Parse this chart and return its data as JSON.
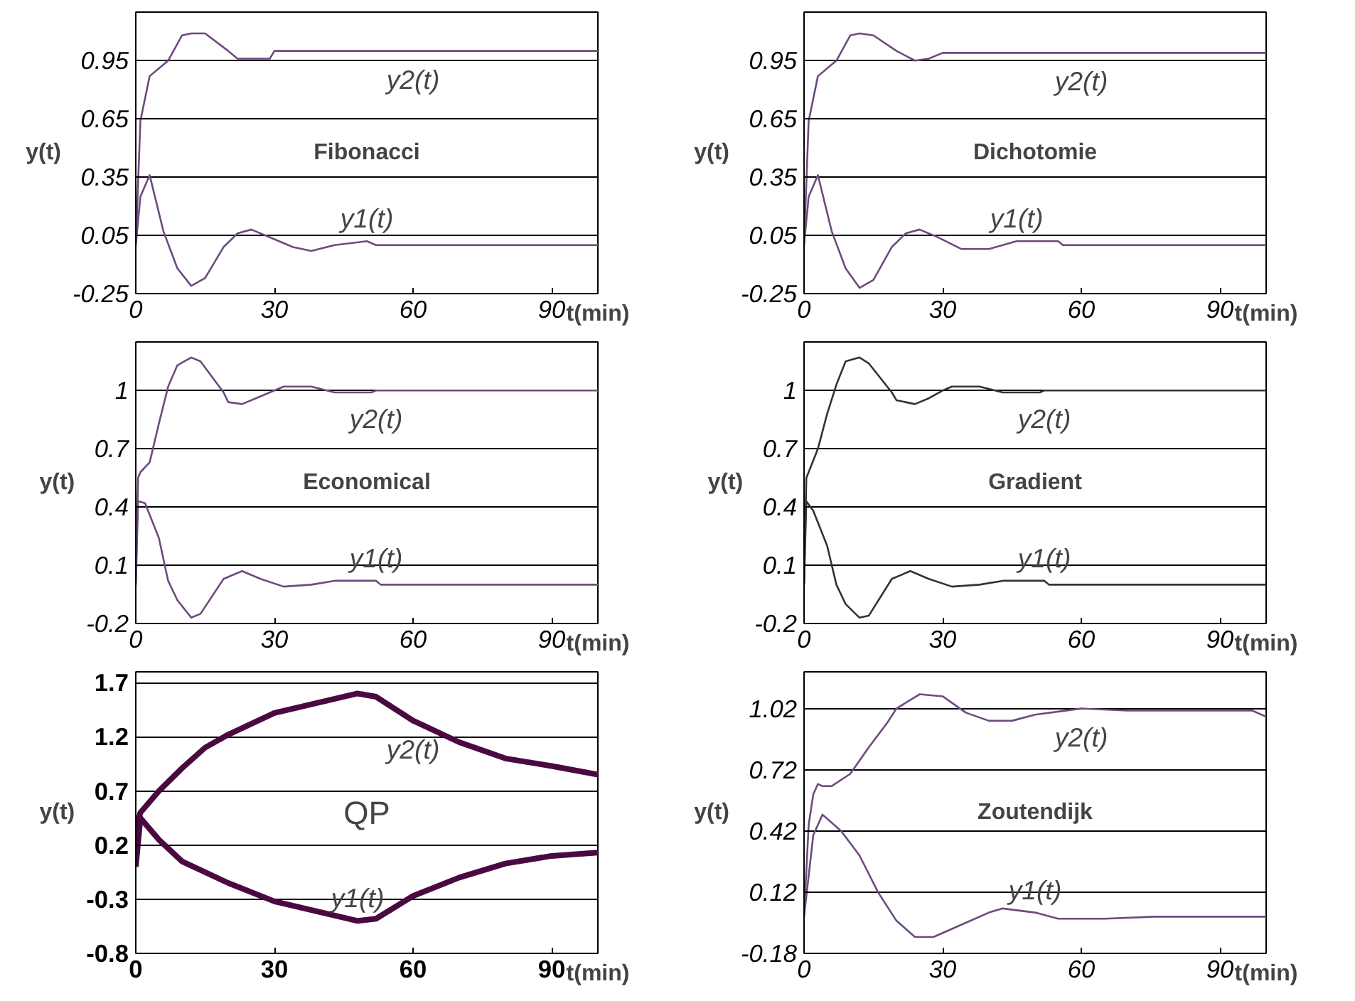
{
  "chart_data": [
    {
      "type": "line",
      "title": "Fibonacci",
      "xlabel": "t(min)",
      "ylabel": "y(t)",
      "xlim": [
        0,
        100
      ],
      "xticks": [
        0,
        30,
        60,
        90
      ],
      "ylim": [
        -0.25,
        1.2
      ],
      "yticks": [
        -0.25,
        0.05,
        0.35,
        0.65,
        0.95
      ],
      "grid": "y",
      "series": [
        {
          "name": "y2(t)",
          "color": "#6e4a7e",
          "x": [
            0,
            1,
            3,
            7,
            10,
            12,
            15,
            20,
            22,
            29,
            30,
            40,
            60,
            80,
            100
          ],
          "values": [
            0,
            0.64,
            0.87,
            0.95,
            1.08,
            1.09,
            1.09,
            1.0,
            0.96,
            0.96,
            1.0,
            1.0,
            1.0,
            1.0,
            1.0
          ]
        },
        {
          "name": "y1(t)",
          "color": "#6e4a7e",
          "x": [
            0,
            1,
            3,
            6,
            9,
            12,
            15,
            19,
            22,
            25,
            29,
            34,
            38,
            43,
            50,
            52,
            100
          ],
          "values": [
            0,
            0.25,
            0.36,
            0.07,
            -0.12,
            -0.21,
            -0.17,
            -0.01,
            0.06,
            0.08,
            0.04,
            -0.01,
            -0.03,
            0.0,
            0.02,
            0.0,
            0.0
          ]
        }
      ]
    },
    {
      "type": "line",
      "title": "Dichotomie",
      "xlabel": "t(min)",
      "ylabel": "y(t)",
      "xlim": [
        0,
        100
      ],
      "xticks": [
        0,
        30,
        60,
        90
      ],
      "ylim": [
        -0.25,
        1.2
      ],
      "yticks": [
        -0.25,
        0.05,
        0.35,
        0.65,
        0.95
      ],
      "grid": "y",
      "series": [
        {
          "name": "y2(t)",
          "color": "#6e4a7e",
          "x": [
            0,
            1,
            3,
            7,
            10,
            12,
            15,
            20,
            24,
            27,
            30,
            40,
            60,
            80,
            100
          ],
          "values": [
            0,
            0.64,
            0.87,
            0.95,
            1.08,
            1.09,
            1.08,
            1.0,
            0.95,
            0.96,
            0.99,
            0.99,
            0.99,
            0.99,
            0.99
          ]
        },
        {
          "name": "y1(t)",
          "color": "#6e4a7e",
          "x": [
            0,
            1,
            3,
            6,
            9,
            12,
            15,
            19,
            22,
            25,
            29,
            34,
            40,
            46,
            55,
            56,
            100
          ],
          "values": [
            0,
            0.25,
            0.36,
            0.07,
            -0.12,
            -0.22,
            -0.18,
            -0.01,
            0.06,
            0.08,
            0.04,
            -0.02,
            -0.02,
            0.02,
            0.02,
            0.0,
            0.0
          ]
        }
      ]
    },
    {
      "type": "line",
      "title": "Economical",
      "xlabel": "t(min)",
      "ylabel": "y(t)",
      "xlim": [
        0,
        100
      ],
      "xticks": [
        0,
        30,
        60,
        90
      ],
      "ylim": [
        -0.2,
        1.25
      ],
      "yticks": [
        -0.2,
        0.1,
        0.4,
        0.7,
        1
      ],
      "grid": "y",
      "series": [
        {
          "name": "y2(t)",
          "color": "#6e4a7e",
          "x": [
            0,
            0.5,
            1,
            3,
            5,
            7,
            9,
            12,
            14,
            19,
            20,
            23,
            27,
            30,
            32,
            38,
            43,
            51,
            52,
            100
          ],
          "values": [
            0,
            0.55,
            0.58,
            0.63,
            0.83,
            1.02,
            1.13,
            1.17,
            1.15,
            0.99,
            0.94,
            0.93,
            0.97,
            1.0,
            1.02,
            1.02,
            0.99,
            0.99,
            1.0,
            1.0
          ]
        },
        {
          "name": "y1(t)",
          "color": "#6e4a7e",
          "x": [
            0,
            0.5,
            2,
            5,
            7,
            9,
            12,
            14,
            19,
            23,
            27,
            32,
            38,
            43,
            52,
            53,
            100
          ],
          "values": [
            0,
            0.43,
            0.42,
            0.24,
            0.02,
            -0.08,
            -0.17,
            -0.15,
            0.03,
            0.07,
            0.03,
            -0.01,
            0.0,
            0.02,
            0.02,
            0.0,
            0.0
          ]
        }
      ]
    },
    {
      "type": "line",
      "title": "Gradient",
      "xlabel": "t(min)",
      "ylabel": "y(t)",
      "xlim": [
        0,
        100
      ],
      "xticks": [
        0,
        30,
        60,
        90
      ],
      "ylim": [
        -0.2,
        1.25
      ],
      "yticks": [
        -0.2,
        0.1,
        0.4,
        0.7,
        1
      ],
      "grid": "y",
      "series": [
        {
          "name": "y2(t)",
          "color": "#333333",
          "x": [
            0,
            0.5,
            1,
            3,
            5,
            7,
            9,
            12,
            14,
            19,
            20,
            24,
            27,
            30,
            32,
            38,
            43,
            51,
            52,
            100
          ],
          "values": [
            0,
            0.55,
            0.58,
            0.7,
            0.88,
            1.03,
            1.15,
            1.17,
            1.14,
            0.99,
            0.95,
            0.93,
            0.96,
            1.0,
            1.02,
            1.02,
            0.99,
            0.99,
            1.0,
            1.0
          ]
        },
        {
          "name": "y1(t)",
          "color": "#333333",
          "x": [
            0,
            0.5,
            2,
            5,
            7,
            9,
            12,
            14,
            19,
            23,
            27,
            32,
            38,
            43,
            52,
            53,
            100
          ],
          "values": [
            0,
            0.43,
            0.38,
            0.2,
            0.0,
            -0.1,
            -0.17,
            -0.16,
            0.03,
            0.07,
            0.03,
            -0.01,
            0.0,
            0.02,
            0.02,
            0.0,
            0.0
          ]
        }
      ]
    },
    {
      "type": "line",
      "title": "QP",
      "xlabel": "t(min)",
      "ylabel": "y(t)",
      "xlim": [
        0,
        100
      ],
      "xticks": [
        0,
        30,
        60,
        90
      ],
      "ylim": [
        -0.8,
        1.8
      ],
      "yticks": [
        -0.8,
        -0.3,
        0.2,
        0.7,
        1.2,
        1.7
      ],
      "grid": "y",
      "series": [
        {
          "name": "y2(t)",
          "color": "#4a0a40",
          "x": [
            0,
            1,
            5,
            10,
            15,
            20,
            30,
            40,
            48,
            52,
            60,
            70,
            80,
            90,
            100
          ],
          "values": [
            0.35,
            0.5,
            0.7,
            0.91,
            1.1,
            1.22,
            1.42,
            1.52,
            1.6,
            1.57,
            1.35,
            1.15,
            1.0,
            0.93,
            0.85
          ]
        },
        {
          "name": "y1(t)",
          "color": "#4a0a40",
          "x": [
            0,
            1,
            5,
            10,
            20,
            30,
            40,
            48,
            52,
            60,
            70,
            80,
            90,
            100
          ],
          "values": [
            0.0,
            0.45,
            0.25,
            0.05,
            -0.15,
            -0.32,
            -0.42,
            -0.5,
            -0.48,
            -0.27,
            -0.1,
            0.03,
            0.1,
            0.13
          ]
        }
      ]
    },
    {
      "type": "line",
      "title": "Zoutendijk",
      "xlabel": "t(min)",
      "ylabel": "y(t)",
      "xlim": [
        0,
        100
      ],
      "xticks": [
        0,
        30,
        60,
        90
      ],
      "ylim": [
        -0.18,
        1.2
      ],
      "yticks": [
        -0.18,
        0.12,
        0.42,
        0.72,
        1.02
      ],
      "grid": "y",
      "series": [
        {
          "name": "y2(t)",
          "color": "#6e4a7e",
          "x": [
            0,
            1,
            2,
            3,
            4,
            6,
            10,
            14,
            18,
            20,
            25,
            30,
            35,
            40,
            45,
            50,
            60,
            70,
            97,
            100
          ],
          "values": [
            0.0,
            0.45,
            0.6,
            0.65,
            0.64,
            0.64,
            0.7,
            0.83,
            0.95,
            1.02,
            1.09,
            1.08,
            1.0,
            0.96,
            0.96,
            0.99,
            1.02,
            1.01,
            1.01,
            0.98
          ]
        },
        {
          "name": "y1(t)",
          "color": "#6e4a7e",
          "x": [
            0,
            2,
            4,
            8,
            12,
            16,
            20,
            24,
            28,
            35,
            40,
            43,
            50,
            55,
            65,
            76,
            100
          ],
          "values": [
            0,
            0.4,
            0.5,
            0.42,
            0.3,
            0.12,
            -0.02,
            -0.1,
            -0.1,
            -0.03,
            0.02,
            0.04,
            0.02,
            -0.01,
            -0.01,
            0.0,
            0.0
          ]
        }
      ]
    }
  ]
}
